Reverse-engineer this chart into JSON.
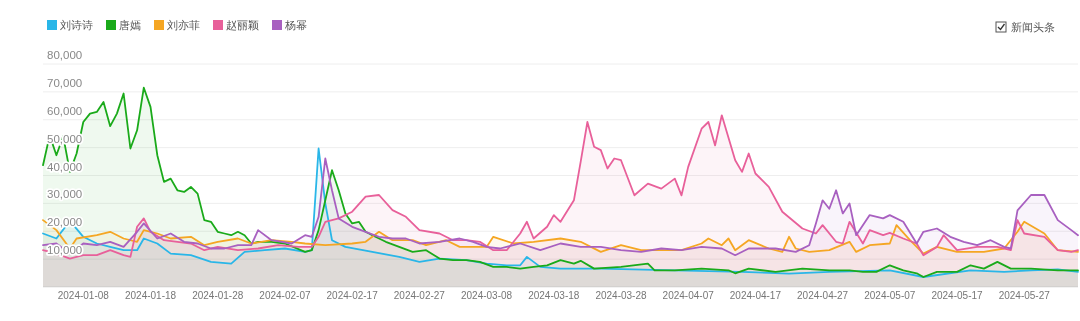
{
  "chart_data": {
    "type": "area",
    "legend": "top left",
    "grid": "y",
    "marker": "none",
    "line_style": "solid",
    "xlim": [
      "2024-01-02",
      "2024-06-04"
    ],
    "xticks": [
      {
        "value": "2024-01-08",
        "label": "2024-01-08"
      },
      {
        "value": "2024-01-18",
        "label": "2024-01-18"
      },
      {
        "value": "2024-01-28",
        "label": "2024-01-28"
      },
      {
        "value": "2024-02-07",
        "label": "2024-02-07"
      },
      {
        "value": "2024-02-17",
        "label": "2024-02-17"
      },
      {
        "value": "2024-02-27",
        "label": "2024-02-27"
      },
      {
        "value": "2024-03-08",
        "label": "2024-03-08"
      },
      {
        "value": "2024-03-18",
        "label": "2024-03-18"
      },
      {
        "value": "2024-03-28",
        "label": "2024-03-28"
      },
      {
        "value": "2024-04-07",
        "label": "2024-04-07"
      },
      {
        "value": "2024-04-17",
        "label": "2024-04-17"
      },
      {
        "value": "2024-04-27",
        "label": "2024-04-27"
      },
      {
        "value": "2024-05-07",
        "label": "2024-05-07"
      },
      {
        "value": "2024-05-17",
        "label": "2024-05-17"
      },
      {
        "value": "2024-05-27",
        "label": "2024-05-27"
      }
    ],
    "ylim": [
      0,
      80000
    ],
    "yticks": [
      {
        "value": 10000,
        "label": "10,000"
      },
      {
        "value": 20000,
        "label": "20,000"
      },
      {
        "value": 30000,
        "label": "30,000"
      },
      {
        "value": 40000,
        "label": "40,000"
      },
      {
        "value": 50000,
        "label": "50,000"
      },
      {
        "value": 60000,
        "label": "60,000"
      },
      {
        "value": 70000,
        "label": "70,000"
      },
      {
        "value": 80000,
        "label": "80,000"
      }
    ],
    "annotations": [
      "新闻头条"
    ],
    "series": [
      {
        "name": "刘诗诗",
        "color": "#29b6e8",
        "x": [
          "2024-01-02",
          "2024-01-04",
          "2024-01-06",
          "2024-01-08",
          "2024-01-10",
          "2024-01-12",
          "2024-01-14",
          "2024-01-16",
          "2024-01-17",
          "2024-01-19",
          "2024-01-21",
          "2024-01-24",
          "2024-01-27",
          "2024-01-30",
          "2024-02-01",
          "2024-02-04",
          "2024-02-07",
          "2024-02-10",
          "2024-02-11",
          "2024-02-12",
          "2024-02-13",
          "2024-02-14",
          "2024-02-16",
          "2024-02-20",
          "2024-02-24",
          "2024-02-27",
          "2024-03-01",
          "2024-03-05",
          "2024-03-08",
          "2024-03-11",
          "2024-03-13",
          "2024-03-14",
          "2024-03-16",
          "2024-03-19",
          "2024-03-25",
          "2024-04-05",
          "2024-04-15",
          "2024-04-22",
          "2024-04-28",
          "2024-05-07",
          "2024-05-12",
          "2024-05-19",
          "2024-05-24",
          "2024-05-28",
          "2024-06-01",
          "2024-06-04"
        ],
        "values": [
          19200,
          17400,
          23700,
          18000,
          15600,
          14400,
          13200,
          13200,
          17400,
          15600,
          12000,
          11400,
          9000,
          8400,
          12600,
          13200,
          13800,
          12600,
          13200,
          49700,
          30000,
          16800,
          14400,
          12600,
          10800,
          9000,
          10200,
          9600,
          8400,
          7800,
          7800,
          10800,
          7200,
          6600,
          6600,
          6000,
          5400,
          4800,
          5400,
          6000,
          3600,
          6000,
          5400,
          6000,
          6300,
          5400
        ]
      },
      {
        "name": "唐嫣",
        "color": "#1aaa1a",
        "x": [
          "2024-01-02",
          "2024-01-03",
          "2024-01-04",
          "2024-01-05",
          "2024-01-06",
          "2024-01-07",
          "2024-01-08",
          "2024-01-09",
          "2024-01-10",
          "2024-01-11",
          "2024-01-12",
          "2024-01-13",
          "2024-01-14",
          "2024-01-15",
          "2024-01-16",
          "2024-01-17",
          "2024-01-18",
          "2024-01-19",
          "2024-01-20",
          "2024-01-21",
          "2024-01-22",
          "2024-01-23",
          "2024-01-24",
          "2024-01-25",
          "2024-01-26",
          "2024-01-27",
          "2024-01-28",
          "2024-01-29",
          "2024-01-30",
          "2024-01-31",
          "2024-02-01",
          "2024-02-02",
          "2024-02-03",
          "2024-02-05",
          "2024-02-07",
          "2024-02-10",
          "2024-02-11",
          "2024-02-12",
          "2024-02-13",
          "2024-02-14",
          "2024-02-15",
          "2024-02-16",
          "2024-02-17",
          "2024-02-18",
          "2024-02-19",
          "2024-02-20",
          "2024-02-22",
          "2024-02-24",
          "2024-02-26",
          "2024-02-28",
          "2024-03-01",
          "2024-03-03",
          "2024-03-05",
          "2024-03-07",
          "2024-03-09",
          "2024-03-11",
          "2024-03-13",
          "2024-03-15",
          "2024-03-17",
          "2024-03-19",
          "2024-03-21",
          "2024-03-22",
          "2024-03-24",
          "2024-03-28",
          "2024-04-01",
          "2024-04-02",
          "2024-04-05",
          "2024-04-09",
          "2024-04-13",
          "2024-04-14",
          "2024-04-16",
          "2024-04-20",
          "2024-04-24",
          "2024-04-28",
          "2024-05-01",
          "2024-05-03",
          "2024-05-05",
          "2024-05-07",
          "2024-05-09",
          "2024-05-11",
          "2024-05-12",
          "2024-05-14",
          "2024-05-17",
          "2024-05-19",
          "2024-05-21",
          "2024-05-23",
          "2024-05-25",
          "2024-05-28",
          "2024-06-01",
          "2024-06-04"
        ],
        "values": [
          43700,
          54400,
          47300,
          54100,
          41300,
          47900,
          59200,
          62200,
          62800,
          66400,
          57700,
          62200,
          69400,
          49700,
          56200,
          71500,
          64600,
          47300,
          37700,
          38900,
          34700,
          34100,
          35900,
          33500,
          24000,
          23400,
          19800,
          19200,
          18600,
          19800,
          18600,
          15600,
          16200,
          16200,
          15600,
          12600,
          13200,
          20400,
          31100,
          41900,
          34700,
          26400,
          22800,
          23400,
          19800,
          18600,
          16200,
          14400,
          12600,
          13200,
          10200,
          9600,
          9600,
          9000,
          7200,
          7200,
          6600,
          7200,
          7800,
          9600,
          8400,
          9400,
          6600,
          7200,
          8400,
          6000,
          6000,
          6600,
          6000,
          4900,
          6600,
          5400,
          6600,
          6000,
          6000,
          5400,
          5400,
          7800,
          6000,
          4900,
          3600,
          5400,
          5400,
          7800,
          6600,
          9000,
          6600,
          6600,
          6000,
          6000
        ]
      },
      {
        "name": "刘亦菲",
        "color": "#f5a623",
        "x": [
          "2024-01-02",
          "2024-01-04",
          "2024-01-06",
          "2024-01-07",
          "2024-01-10",
          "2024-01-12",
          "2024-01-14",
          "2024-01-16",
          "2024-01-17",
          "2024-01-19",
          "2024-01-21",
          "2024-01-24",
          "2024-01-26",
          "2024-01-28",
          "2024-01-31",
          "2024-02-02",
          "2024-02-05",
          "2024-02-08",
          "2024-02-10",
          "2024-02-13",
          "2024-02-17",
          "2024-02-19",
          "2024-02-21",
          "2024-02-23",
          "2024-02-26",
          "2024-02-28",
          "2024-03-02",
          "2024-03-04",
          "2024-03-08",
          "2024-03-09",
          "2024-03-12",
          "2024-03-15",
          "2024-03-19",
          "2024-03-22",
          "2024-03-25",
          "2024-03-28",
          "2024-03-31",
          "2024-04-03",
          "2024-04-06",
          "2024-04-09",
          "2024-04-10",
          "2024-04-12",
          "2024-04-13",
          "2024-04-14",
          "2024-04-16",
          "2024-04-19",
          "2024-04-21",
          "2024-04-22",
          "2024-04-23",
          "2024-04-25",
          "2024-04-28",
          "2024-05-01",
          "2024-05-02",
          "2024-05-04",
          "2024-05-07",
          "2024-05-08",
          "2024-05-10",
          "2024-05-12",
          "2024-05-14",
          "2024-05-17",
          "2024-05-21",
          "2024-05-24",
          "2024-05-26",
          "2024-05-27",
          "2024-05-30",
          "2024-06-01",
          "2024-06-04"
        ],
        "values": [
          24000,
          20400,
          13800,
          17400,
          18600,
          19800,
          17400,
          16200,
          20400,
          19200,
          17400,
          18000,
          15000,
          16200,
          17400,
          15600,
          16800,
          16200,
          15600,
          15000,
          15600,
          16200,
          19800,
          16800,
          16800,
          15000,
          16800,
          14400,
          14400,
          18000,
          15600,
          16200,
          17400,
          16200,
          12600,
          15000,
          13200,
          13200,
          13200,
          15600,
          17400,
          15000,
          17400,
          13200,
          16800,
          13800,
          12600,
          18000,
          13800,
          12600,
          13200,
          16200,
          12600,
          15000,
          15600,
          22200,
          16800,
          12000,
          14400,
          12600,
          12600,
          13800,
          19800,
          23400,
          19200,
          13200,
          12600
        ]
      },
      {
        "name": "赵丽颖",
        "color": "#e8609a",
        "x": [
          "2024-01-02",
          "2024-01-04",
          "2024-01-06",
          "2024-01-08",
          "2024-01-10",
          "2024-01-12",
          "2024-01-14",
          "2024-01-15",
          "2024-01-16",
          "2024-01-17",
          "2024-01-18",
          "2024-01-20",
          "2024-01-22",
          "2024-01-24",
          "2024-01-26",
          "2024-01-28",
          "2024-01-31",
          "2024-02-03",
          "2024-02-06",
          "2024-02-09",
          "2024-02-11",
          "2024-02-12",
          "2024-02-13",
          "2024-02-15",
          "2024-02-17",
          "2024-02-19",
          "2024-02-21",
          "2024-02-23",
          "2024-02-25",
          "2024-02-27",
          "2024-03-01",
          "2024-03-03",
          "2024-03-05",
          "2024-03-07",
          "2024-03-09",
          "2024-03-11",
          "2024-03-13",
          "2024-03-14",
          "2024-03-15",
          "2024-03-17",
          "2024-03-18",
          "2024-03-19",
          "2024-03-21",
          "2024-03-22",
          "2024-03-23",
          "2024-03-24",
          "2024-03-25",
          "2024-03-26",
          "2024-03-27",
          "2024-03-28",
          "2024-03-30",
          "2024-04-01",
          "2024-04-03",
          "2024-04-05",
          "2024-04-06",
          "2024-04-07",
          "2024-04-09",
          "2024-04-10",
          "2024-04-11",
          "2024-04-12",
          "2024-04-14",
          "2024-04-15",
          "2024-04-16",
          "2024-04-17",
          "2024-04-19",
          "2024-04-21",
          "2024-04-24",
          "2024-04-26",
          "2024-04-27",
          "2024-04-29",
          "2024-04-30",
          "2024-05-01",
          "2024-05-03",
          "2024-05-04",
          "2024-05-06",
          "2024-05-07",
          "2024-05-09",
          "2024-05-11",
          "2024-05-12",
          "2024-05-14",
          "2024-05-15",
          "2024-05-17",
          "2024-05-20",
          "2024-05-23",
          "2024-05-25",
          "2024-05-26",
          "2024-05-27",
          "2024-05-30",
          "2024-06-01",
          "2024-06-03",
          "2024-06-04"
        ],
        "values": [
          13200,
          12000,
          10200,
          11400,
          11400,
          13200,
          11400,
          10800,
          21600,
          24600,
          19800,
          16800,
          16200,
          15600,
          13200,
          14400,
          13200,
          13800,
          15000,
          14400,
          14400,
          18000,
          23400,
          24600,
          27000,
          32400,
          33000,
          27600,
          25200,
          20400,
          19200,
          16800,
          16800,
          16200,
          13200,
          13200,
          19200,
          23400,
          17400,
          21600,
          25800,
          23400,
          31100,
          45000,
          59200,
          50300,
          49100,
          42500,
          46100,
          45500,
          32900,
          37100,
          35300,
          38900,
          32900,
          43100,
          56800,
          59200,
          50800,
          61600,
          45500,
          41300,
          47900,
          40700,
          35900,
          27000,
          21000,
          19200,
          22200,
          16200,
          15600,
          23400,
          15600,
          20400,
          18600,
          19400,
          17400,
          15600,
          11400,
          14400,
          18600,
          13200,
          14400,
          14400,
          13200,
          24000,
          19200,
          18000,
          13200,
          12600,
          13200
        ]
      },
      {
        "name": "杨幂",
        "color": "#a860c0",
        "x": [
          "2024-01-02",
          "2024-01-04",
          "2024-01-06",
          "2024-01-08",
          "2024-01-10",
          "2024-01-12",
          "2024-01-14",
          "2024-01-16",
          "2024-01-17",
          "2024-01-19",
          "2024-01-21",
          "2024-01-23",
          "2024-01-25",
          "2024-01-27",
          "2024-01-29",
          "2024-01-31",
          "2024-02-02",
          "2024-02-03",
          "2024-02-05",
          "2024-02-08",
          "2024-02-10",
          "2024-02-11",
          "2024-02-12",
          "2024-02-13",
          "2024-02-14",
          "2024-02-15",
          "2024-02-17",
          "2024-02-19",
          "2024-02-21",
          "2024-02-23",
          "2024-02-25",
          "2024-02-27",
          "2024-03-01",
          "2024-03-04",
          "2024-03-06",
          "2024-03-08",
          "2024-03-10",
          "2024-03-13",
          "2024-03-16",
          "2024-03-19",
          "2024-03-22",
          "2024-03-25",
          "2024-03-28",
          "2024-03-31",
          "2024-04-03",
          "2024-04-06",
          "2024-04-09",
          "2024-04-12",
          "2024-04-14",
          "2024-04-16",
          "2024-04-20",
          "2024-04-23",
          "2024-04-25",
          "2024-04-26",
          "2024-04-27",
          "2024-04-28",
          "2024-04-29",
          "2024-04-30",
          "2024-05-01",
          "2024-05-02",
          "2024-05-04",
          "2024-05-06",
          "2024-05-07",
          "2024-05-09",
          "2024-05-11",
          "2024-05-12",
          "2024-05-14",
          "2024-05-16",
          "2024-05-18",
          "2024-05-20",
          "2024-05-22",
          "2024-05-24",
          "2024-05-25",
          "2024-05-26",
          "2024-05-28",
          "2024-05-30",
          "2024-06-01",
          "2024-06-03",
          "2024-06-04"
        ],
        "values": [
          15000,
          15600,
          12000,
          15600,
          15000,
          16200,
          14400,
          19800,
          22800,
          17400,
          19200,
          16200,
          15600,
          13800,
          13800,
          15000,
          15000,
          20400,
          16800,
          15600,
          18600,
          18000,
          25200,
          46100,
          34700,
          24600,
          21600,
          19800,
          18000,
          17400,
          17400,
          15600,
          16200,
          17400,
          16200,
          14400,
          13800,
          15600,
          13200,
          15600,
          14400,
          14400,
          13200,
          12600,
          13800,
          13200,
          14400,
          13800,
          11400,
          13800,
          13800,
          12600,
          15000,
          22800,
          31100,
          28100,
          34700,
          26400,
          30000,
          18600,
          25800,
          24600,
          25800,
          23400,
          15600,
          19800,
          21000,
          18000,
          16200,
          15000,
          16800,
          14400,
          13800,
          27500,
          33000,
          33000,
          24000,
          20400,
          18600
        ]
      }
    ]
  }
}
